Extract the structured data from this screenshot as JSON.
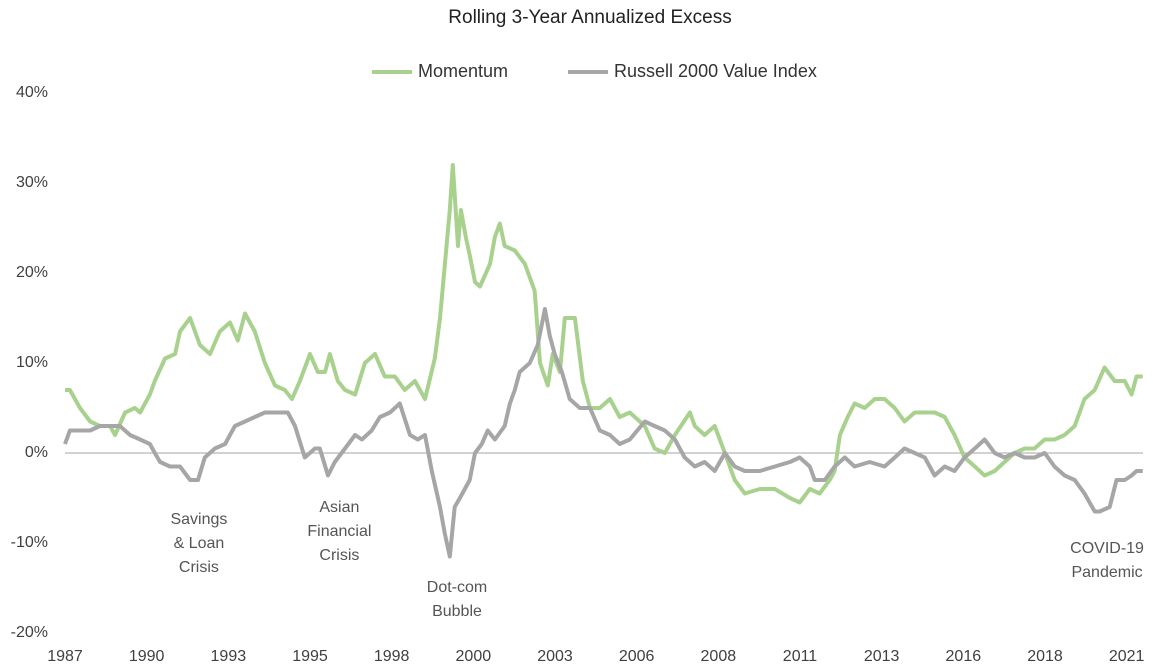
{
  "chart_data": {
    "type": "line",
    "title": "Rolling 3-Year Annualized Excess",
    "xlim": [
      1987,
      2020
    ],
    "xticks": [
      {
        "value": 1987,
        "label": "1987"
      },
      {
        "value": 1989.5,
        "label": "1990"
      },
      {
        "value": 1992,
        "label": "1993"
      },
      {
        "value": 1994.5,
        "label": "1995"
      },
      {
        "value": 1997,
        "label": "1998"
      },
      {
        "value": 1999.5,
        "label": "2000"
      },
      {
        "value": 2002,
        "label": "2003"
      },
      {
        "value": 2004.5,
        "label": "2006"
      },
      {
        "value": 2007,
        "label": "2008"
      },
      {
        "value": 2009.5,
        "label": "2011"
      },
      {
        "value": 2012,
        "label": "2013"
      },
      {
        "value": 2014.5,
        "label": "2016"
      },
      {
        "value": 2017,
        "label": "2018"
      },
      {
        "value": 2019.5,
        "label": "2021"
      }
    ],
    "ylim": [
      -20,
      40
    ],
    "yticks": [
      {
        "value": -20,
        "label": "-20%"
      },
      {
        "value": -10,
        "label": "-10%"
      },
      {
        "value": 0,
        "label": "0%"
      },
      {
        "value": 10,
        "label": "10%"
      },
      {
        "value": 20,
        "label": "20%"
      },
      {
        "value": 30,
        "label": "30%"
      },
      {
        "value": 40,
        "label": "40%"
      }
    ],
    "zero_line": true,
    "annotations": [
      {
        "lines": [
          "Savings",
          "& Loan",
          "Crisis"
        ],
        "x": 1991.1
      },
      {
        "lines": [
          "Asian",
          "Financial",
          "Crisis"
        ],
        "x": 1995.4
      },
      {
        "lines": [
          "Dot-com",
          "Bubble"
        ],
        "x": 1999.0
      },
      {
        "lines": [
          "COVID-19",
          "Pandemic"
        ],
        "x": 2018.9
      }
    ],
    "series": [
      {
        "name": "Momentum",
        "color": "#a9d18e",
        "x": [
          1987.0,
          1987.15,
          1987.46,
          1987.77,
          1988.07,
          1988.38,
          1988.53,
          1988.84,
          1989.14,
          1989.3,
          1989.6,
          1989.75,
          1990.06,
          1990.37,
          1990.52,
          1990.83,
          1991.13,
          1991.44,
          1991.74,
          1992.05,
          1992.29,
          1992.51,
          1992.81,
          1993.12,
          1993.43,
          1993.73,
          1993.95,
          1994.19,
          1994.5,
          1994.74,
          1994.96,
          1995.11,
          1995.35,
          1995.57,
          1995.88,
          1996.18,
          1996.49,
          1996.79,
          1997.1,
          1997.4,
          1997.71,
          1998.02,
          1998.32,
          1998.48,
          1998.63,
          1998.78,
          1998.87,
          1999.03,
          1999.12,
          1999.27,
          1999.39,
          1999.55,
          1999.7,
          2000.01,
          2000.16,
          2000.31,
          2000.46,
          2000.77,
          2001.08,
          2001.38,
          2001.54,
          2001.78,
          2001.93,
          2002.15,
          2002.3,
          2002.61,
          2002.85,
          2003.07,
          2003.37,
          2003.68,
          2003.98,
          2004.29,
          2004.75,
          2005.05,
          2005.36,
          2005.67,
          2006.13,
          2006.28,
          2006.58,
          2006.89,
          2007.2,
          2007.5,
          2007.81,
          2008.27,
          2008.73,
          2009.19,
          2009.49,
          2009.8,
          2010.1,
          2010.41,
          2010.56,
          2010.72,
          2010.96,
          2011.17,
          2011.48,
          2011.79,
          2012.09,
          2012.4,
          2012.7,
          2013.01,
          2013.32,
          2013.62,
          2013.93,
          2014.23,
          2014.54,
          2014.85,
          2015.15,
          2015.46,
          2015.76,
          2016.07,
          2016.38,
          2016.68,
          2016.99,
          2017.29,
          2017.6,
          2017.91,
          2018.21,
          2018.52,
          2018.82,
          2019.13,
          2019.44,
          2019.65,
          2019.8,
          2019.99
        ],
        "values": [
          7,
          7,
          5,
          3.5,
          3,
          3,
          2,
          4.5,
          5,
          4.5,
          6.5,
          8,
          10.5,
          11,
          13.5,
          15,
          12,
          11,
          13.5,
          14.5,
          12.5,
          15.5,
          13.5,
          10,
          7.5,
          7,
          6,
          8,
          11,
          9,
          9,
          11,
          8,
          7,
          6.5,
          10,
          11,
          8.5,
          8.5,
          7,
          8,
          6,
          10.5,
          15,
          21,
          27,
          32,
          23,
          27,
          24,
          22,
          19,
          18.5,
          21,
          24,
          25.5,
          23,
          22.5,
          21,
          18,
          10,
          7.5,
          11,
          9,
          15,
          15,
          8,
          5,
          5,
          6,
          4,
          4.5,
          3,
          0.5,
          0,
          2,
          4.5,
          3,
          2,
          3,
          0,
          -3,
          -4.5,
          -4,
          -4,
          -5,
          -5.5,
          -4,
          -4.5,
          -3,
          -2,
          2,
          4,
          5.5,
          5,
          6,
          6,
          5,
          3.5,
          4.5,
          4.5,
          4.5,
          4,
          2,
          -0.5,
          -1.5,
          -2.5,
          -2,
          -1,
          0,
          0.5,
          0.5,
          1.5,
          1.5,
          2,
          3,
          6,
          7,
          9.5,
          8,
          8,
          6.5,
          8.5,
          8.5
        ]
      },
      {
        "name": "Russell 2000 Value Index",
        "color": "#a6a6a6",
        "x": [
          1987.0,
          1987.15,
          1987.46,
          1987.77,
          1988.07,
          1988.38,
          1988.68,
          1988.99,
          1989.3,
          1989.6,
          1989.75,
          1989.91,
          1990.21,
          1990.52,
          1990.83,
          1991.07,
          1991.28,
          1991.59,
          1991.9,
          1992.2,
          1992.51,
          1992.81,
          1993.12,
          1993.43,
          1993.82,
          1994.04,
          1994.34,
          1994.65,
          1994.8,
          1995.05,
          1995.26,
          1995.57,
          1995.88,
          1996.09,
          1996.39,
          1996.64,
          1996.95,
          1997.25,
          1997.56,
          1997.8,
          1998.02,
          1998.23,
          1998.48,
          1998.63,
          1998.78,
          1998.93,
          1999.09,
          1999.24,
          1999.39,
          1999.55,
          1999.76,
          1999.94,
          2000.16,
          2000.46,
          2000.62,
          2000.77,
          2000.92,
          2001.23,
          2001.47,
          2001.69,
          2001.84,
          2001.99,
          2002.21,
          2002.45,
          2002.76,
          2003.07,
          2003.37,
          2003.68,
          2003.98,
          2004.29,
          2004.75,
          2005.05,
          2005.36,
          2005.67,
          2005.97,
          2006.28,
          2006.58,
          2006.89,
          2007.2,
          2007.5,
          2007.81,
          2008.27,
          2008.73,
          2009.19,
          2009.49,
          2009.8,
          2009.95,
          2010.26,
          2010.56,
          2010.87,
          2011.17,
          2011.63,
          2012.09,
          2012.4,
          2012.7,
          2013.01,
          2013.32,
          2013.62,
          2013.93,
          2014.23,
          2014.54,
          2014.85,
          2015.15,
          2015.46,
          2015.76,
          2016.07,
          2016.38,
          2016.68,
          2016.99,
          2017.29,
          2017.6,
          2017.91,
          2018.21,
          2018.52,
          2018.67,
          2018.98,
          2019.19,
          2019.44,
          2019.65,
          2019.8,
          2019.99
        ],
        "values": [
          1,
          2.5,
          2.5,
          2.5,
          3,
          3,
          3,
          2,
          1.5,
          1,
          0,
          -1,
          -1.5,
          -1.5,
          -3,
          -3,
          -0.5,
          0.5,
          1,
          3,
          3.5,
          4,
          4.5,
          4.5,
          4.5,
          3,
          -0.5,
          0.5,
          0.5,
          -2.5,
          -1,
          0.5,
          2,
          1.5,
          2.5,
          4,
          4.5,
          5.5,
          2,
          1.5,
          2,
          -2,
          -6,
          -9,
          -11.5,
          -6,
          -5,
          -4,
          -3,
          0,
          1,
          2.5,
          1.5,
          3,
          5.5,
          7,
          9,
          10,
          12,
          16,
          13,
          11,
          9,
          6,
          5,
          5,
          2.5,
          2,
          1,
          1.5,
          3.5,
          3,
          2.5,
          1.5,
          -0.5,
          -1.5,
          -1,
          -2,
          0,
          -1.5,
          -2,
          -2,
          -1.5,
          -1,
          -0.5,
          -1.5,
          -3,
          -3,
          -1.5,
          -0.5,
          -1.5,
          -1,
          -1.5,
          -0.5,
          0.5,
          0,
          -0.5,
          -2.5,
          -1.5,
          -2,
          -0.5,
          0.5,
          1.5,
          0,
          -0.5,
          0,
          -0.5,
          -0.5,
          0,
          -1.5,
          -2.5,
          -3,
          -4.5,
          -6.5,
          -6.5,
          -6,
          -3,
          -3,
          -2.5,
          -2,
          -2
        ]
      }
    ]
  }
}
